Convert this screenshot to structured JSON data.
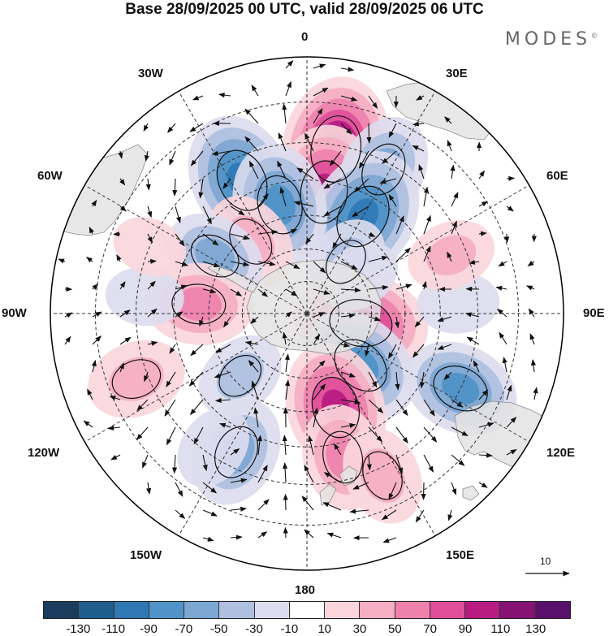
{
  "title": "Base 28/09/2025 00 UTC, valid 28/09/2025 06 UTC",
  "brand": {
    "name": "MODES",
    "mark": "©"
  },
  "map": {
    "projection": "south-polar-stereographic",
    "longitude_labels": {
      "top": "0",
      "bottom": "180",
      "left": "90W",
      "right": "90E",
      "nw1": "30W",
      "nw2": "60W",
      "sw1": "120W",
      "sw2": "150W",
      "ne1": "30E",
      "ne2": "60E",
      "se1": "120E",
      "se2": "150E"
    },
    "reference_vector": {
      "value": "10"
    },
    "colors": {
      "land": "#e3e3e3",
      "coast": "#8c8c8c",
      "grid": "#333333",
      "rim": "#000000"
    },
    "anomaly_centers": [
      {
        "lon": 10,
        "lat": -41,
        "value": 120
      },
      {
        "lon": 8,
        "lat": -53,
        "value": 105
      },
      {
        "lon": -26,
        "lat": -46,
        "value": -105
      },
      {
        "lon": 28,
        "lat": -42,
        "value": -70
      },
      {
        "lon": 30,
        "lat": -56,
        "value": -110
      },
      {
        "lon": 37,
        "lat": -70,
        "value": -45
      },
      {
        "lon": -14,
        "lat": -56,
        "value": -90
      },
      {
        "lon": -38,
        "lat": -62,
        "value": 55
      },
      {
        "lon": -58,
        "lat": -57,
        "value": -60
      },
      {
        "lon": -85,
        "lat": -57,
        "value": 70
      },
      {
        "lon": 100,
        "lat": -73,
        "value": 105
      },
      {
        "lon": 134,
        "lat": -67,
        "value": -90
      },
      {
        "lon": 163,
        "lat": -60,
        "value": 100
      },
      {
        "lon": 166,
        "lat": -46,
        "value": 65
      },
      {
        "lon": -153,
        "lat": -44,
        "value": -70
      },
      {
        "lon": -133,
        "lat": -62,
        "value": -45
      },
      {
        "lon": -145,
        "lat": -42,
        "value": -35
      },
      {
        "lon": -111,
        "lat": -37,
        "value": 55
      },
      {
        "lon": 86,
        "lat": -45,
        "value": -30
      },
      {
        "lon": 68,
        "lat": -44,
        "value": 40
      },
      {
        "lon": 116,
        "lat": -40,
        "value": -80
      },
      {
        "lon": 155,
        "lat": -38,
        "value": 55
      },
      {
        "lon": -84,
        "lat": -42,
        "value": -25
      },
      {
        "lon": -67,
        "lat": -40,
        "value": 20
      },
      {
        "lon": 55,
        "lat": -70,
        "value": -30
      }
    ]
  },
  "colorbar": {
    "tick_labels": [
      "-130",
      "-110",
      "-90",
      "-70",
      "-50",
      "-30",
      "-10",
      "10",
      "30",
      "50",
      "70",
      "90",
      "110",
      "130"
    ],
    "colors": [
      "#1a3d5e",
      "#1f5d8c",
      "#2f78b4",
      "#4f93c7",
      "#7da7d3",
      "#aebfe0",
      "#dcdcee",
      "#ffffff",
      "#fad6dc",
      "#f5aec3",
      "#ee82ac",
      "#e0509a",
      "#b81b82",
      "#861274",
      "#58106c"
    ]
  }
}
